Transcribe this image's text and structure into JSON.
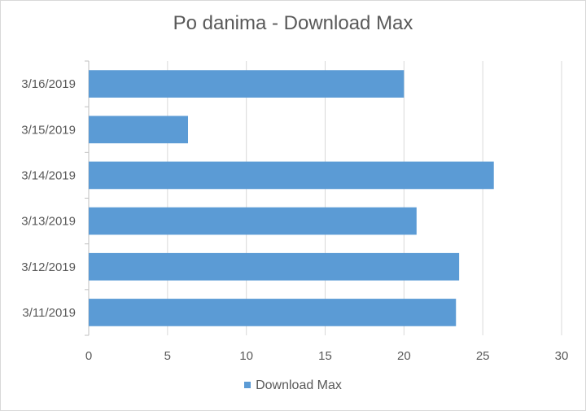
{
  "chart_data": {
    "type": "bar",
    "orientation": "horizontal",
    "title": "Po danima - Download Max",
    "categories": [
      "3/11/2019",
      "3/12/2019",
      "3/13/2019",
      "3/14/2019",
      "3/15/2019",
      "3/16/2019"
    ],
    "series": [
      {
        "name": "Download Max",
        "values": [
          23.3,
          23.5,
          20.8,
          25.7,
          6.3,
          20.0
        ],
        "color": "#5b9bd5"
      }
    ],
    "xlim": [
      0,
      30
    ],
    "xticks": [
      0,
      5,
      10,
      15,
      20,
      25,
      30
    ],
    "grid": true,
    "legend_position": "bottom"
  }
}
